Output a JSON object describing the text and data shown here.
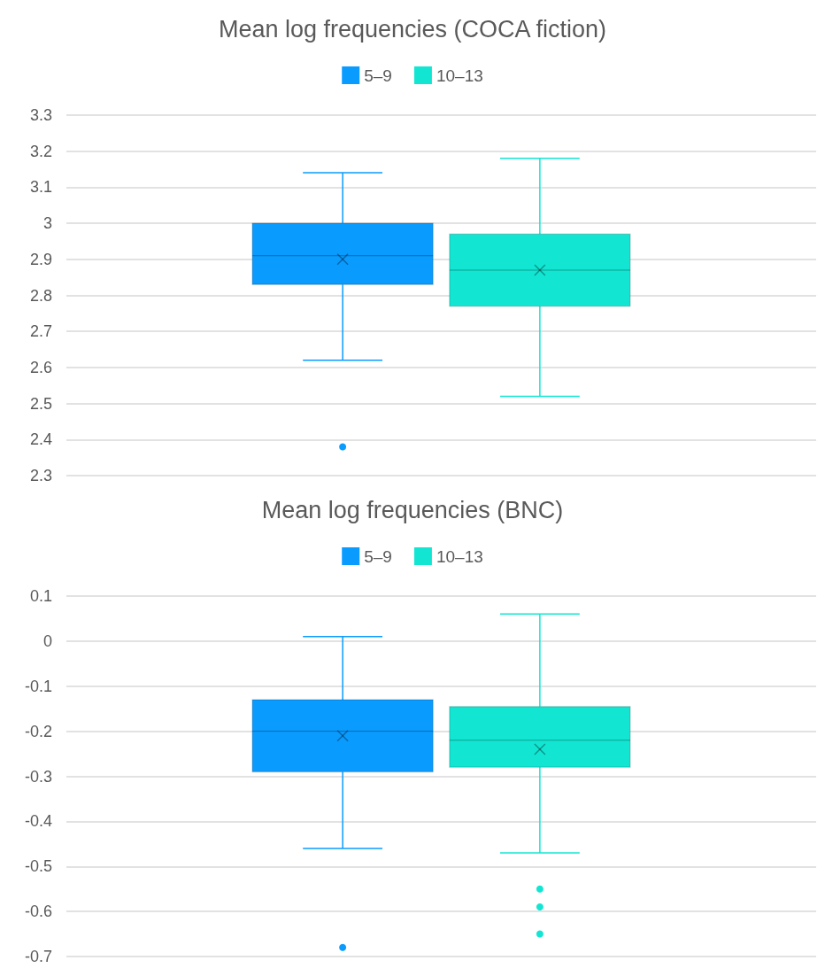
{
  "chart_data": [
    {
      "type": "box",
      "title": "Mean log frequencies (COCA fiction)",
      "categories": [
        null
      ],
      "legend": "top",
      "grid": "y",
      "marker": "cross",
      "tick_labels": "y",
      "ylim": [
        2.3,
        3.3
      ],
      "yticks": [
        2.3,
        2.4,
        2.5,
        2.6,
        2.7,
        2.8,
        2.9,
        3,
        3.1,
        3.2,
        3.3
      ],
      "series": [
        {
          "name": "5–9",
          "color": "#0a9bff",
          "boxes": [
            {
              "low": 2.62,
              "q1": 2.83,
              "median": 2.91,
              "q3": 3.0,
              "high": 3.14,
              "mean": 2.9,
              "outliers": [
                2.38
              ]
            }
          ]
        },
        {
          "name": "10–13",
          "color": "#12e6d2",
          "boxes": [
            {
              "low": 2.52,
              "q1": 2.77,
              "median": 2.87,
              "q3": 2.97,
              "high": 3.18,
              "mean": 2.87
            }
          ]
        }
      ]
    },
    {
      "type": "box",
      "title": "Mean log frequencies (BNC)",
      "categories": [
        null
      ],
      "legend": "top",
      "grid": "y",
      "marker": "cross",
      "tick_labels": "y",
      "ylim": [
        -0.7,
        0.1
      ],
      "yticks": [
        -0.7,
        -0.6,
        -0.5,
        -0.4,
        -0.3,
        -0.2,
        -0.1,
        0,
        0.1
      ],
      "series": [
        {
          "name": "5–9",
          "color": "#0a9bff",
          "boxes": [
            {
              "low": -0.46,
              "q1": -0.29,
              "median": -0.2,
              "q3": -0.13,
              "high": 0.01,
              "mean": -0.21,
              "outliers": [
                -0.68
              ]
            }
          ]
        },
        {
          "name": "10–13",
          "color": "#12e6d2",
          "boxes": [
            {
              "low": -0.47,
              "q1": -0.28,
              "median": -0.22,
              "q3": -0.145,
              "high": 0.06,
              "mean": -0.24,
              "outliers": [
                -0.55,
                -0.59,
                -0.65
              ]
            }
          ]
        }
      ]
    }
  ]
}
